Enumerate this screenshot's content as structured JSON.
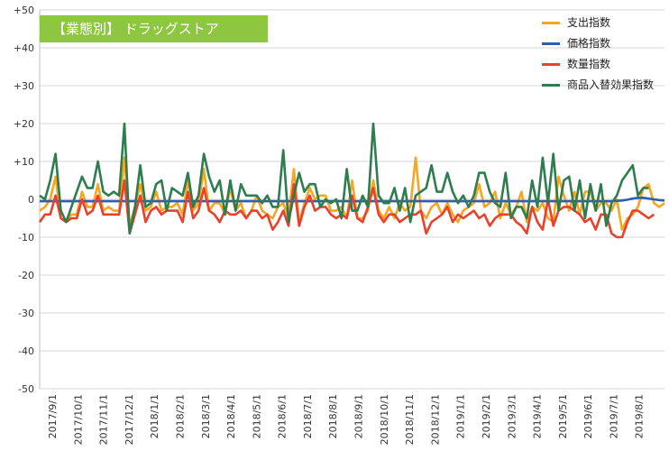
{
  "chart_data": {
    "type": "line",
    "title": "【業態別】 ドラッグストア",
    "ylim": [
      -50,
      50
    ],
    "y_ticks": [
      50,
      40,
      30,
      20,
      10,
      0,
      -10,
      -20,
      -30,
      -40,
      -50
    ],
    "y_tick_labels": [
      "+50",
      "+40",
      "+30",
      "+20",
      "+10",
      "0",
      "-10",
      "-20",
      "-30",
      "-40",
      "-50"
    ],
    "x_labels": [
      "2017/9/1",
      "2017/10/1",
      "2017/11/1",
      "2017/12/1",
      "2018/1/1",
      "2018/2/1",
      "2018/3/1",
      "2018/4/1",
      "2018/5/1",
      "2018/6/1",
      "2018/7/1",
      "2018/8/1",
      "2018/9/1",
      "2018/10/1",
      "2018/11/1",
      "2018/12/1",
      "2019/1/1",
      "2019/2/1",
      "2019/3/1",
      "2019/4/1",
      "2019/5/1",
      "2019/6/1",
      "2019/7/1",
      "2019/8/1"
    ],
    "grid": true,
    "legend_position": "top-right",
    "series": [
      {
        "name": "支出指数",
        "color": "#F5A623",
        "values": [
          -3,
          -2,
          0,
          6,
          -5,
          -6,
          -4,
          -4,
          2,
          -2,
          -2,
          4,
          -3,
          -2,
          -3,
          -3,
          11,
          -7,
          -2,
          4,
          -3,
          -2,
          2,
          -3,
          -2,
          -2,
          -1,
          -4,
          5,
          -3,
          -1,
          8,
          -3,
          -1,
          -1,
          -4,
          3,
          -3,
          -1,
          -5,
          -3,
          1,
          -3,
          -4,
          -5,
          -2,
          -1,
          -5,
          8,
          -6,
          -1,
          3,
          0,
          1,
          1,
          -3,
          -3,
          -2,
          -5,
          5,
          -5,
          -5,
          -3,
          5,
          -3,
          -5,
          -2,
          -5,
          -1,
          -3,
          -2,
          11,
          -3,
          -5,
          -2,
          -1,
          -4,
          -1,
          -4,
          -6,
          -3,
          -2,
          -1,
          4,
          -2,
          -1,
          2,
          -5,
          -1,
          -4,
          -2,
          2,
          -6,
          -2,
          -3,
          -1,
          -5,
          -6,
          6,
          1,
          -3,
          2,
          -4,
          2,
          2,
          -3,
          -1,
          -1,
          -3,
          0,
          -8,
          -5,
          -4,
          -2,
          3,
          4,
          -1,
          -2,
          -1
        ]
      },
      {
        "name": "価格指数",
        "color": "#2E5FA8",
        "values": [
          -0.5,
          -0.5,
          -0.5,
          -0.5,
          -0.5,
          -0.5,
          -0.5,
          -0.5,
          -0.5,
          -0.5,
          -0.5,
          -0.5,
          -0.5,
          -0.5,
          -0.5,
          -0.5,
          -0.5,
          -0.5,
          -0.5,
          -0.5,
          -0.5,
          -0.5,
          -0.5,
          -0.5,
          -0.5,
          -0.5,
          -0.5,
          -0.5,
          -0.5,
          -0.5,
          -0.5,
          -0.5,
          -0.5,
          -0.5,
          -0.5,
          -0.5,
          -0.5,
          -0.5,
          -0.5,
          -0.5,
          -0.5,
          -0.5,
          -0.5,
          -0.5,
          -0.5,
          -0.5,
          -0.5,
          -0.5,
          -0.5,
          -0.5,
          -0.5,
          -0.5,
          -0.5,
          -0.5,
          -0.5,
          -0.5,
          -0.5,
          -0.5,
          -0.5,
          -0.5,
          -0.5,
          -0.5,
          -0.5,
          -0.5,
          -0.5,
          -0.5,
          -0.5,
          -0.5,
          -0.5,
          -0.5,
          -0.5,
          -0.5,
          -0.5,
          -0.5,
          -0.5,
          -0.5,
          -0.5,
          -0.5,
          -0.5,
          -0.5,
          -0.5,
          -0.5,
          -0.5,
          -0.5,
          -0.5,
          -0.5,
          -0.5,
          -0.5,
          -0.5,
          -0.5,
          -0.5,
          -0.5,
          -0.5,
          -0.5,
          -0.5,
          -0.5,
          -0.5,
          -0.5,
          -0.5,
          -0.5,
          -0.5,
          -0.5,
          -0.5,
          -0.5,
          -0.5,
          -0.5,
          -0.5,
          -0.5,
          -0.5,
          -0.4,
          -0.3,
          -0.1,
          0.2,
          0.4,
          0.4,
          0.2,
          0,
          -0.2,
          -0.3
        ]
      },
      {
        "name": "数量指数",
        "color": "#E8412C",
        "values": [
          -6,
          -4,
          -4,
          1,
          -5,
          -6,
          -5,
          -5,
          0,
          -4,
          -3,
          1,
          -4,
          -4,
          -4,
          -4,
          5,
          -9,
          -4,
          1,
          -6,
          -3,
          -2,
          -4,
          -3,
          -3,
          -3,
          -6,
          2,
          -5,
          -3,
          3,
          -3,
          -4,
          -6,
          -3,
          -4,
          -4,
          -3,
          -5,
          -3,
          -3,
          -5,
          -4,
          -8,
          -6,
          -3,
          -7,
          4,
          -7,
          -2,
          1,
          -3,
          -2,
          -2,
          -4,
          -5,
          -4,
          -5,
          1,
          -5,
          -6,
          -2,
          3,
          -4,
          -6,
          -4,
          -4,
          -6,
          -5,
          -4,
          -4,
          -3,
          -9,
          -6,
          -5,
          -4,
          -2,
          -6,
          -4,
          -5,
          -4,
          -3,
          -5,
          -4,
          -7,
          -5,
          -4,
          -4,
          -4,
          -6,
          -7,
          -9,
          -2,
          -6,
          -8,
          0,
          -7,
          -3,
          -2,
          -2,
          -3,
          -4,
          -6,
          -5,
          -8,
          -4,
          -4,
          -9,
          -10,
          -10,
          -6,
          -3,
          -3,
          -4,
          -5,
          -4
        ]
      },
      {
        "name": "商品入替効果指数",
        "color": "#2E7D4F",
        "values": [
          1,
          0,
          5,
          12,
          -3,
          -6,
          -2,
          2,
          6,
          3,
          3,
          10,
          2,
          1,
          2,
          1,
          20,
          -9,
          -2,
          9,
          -2,
          -1,
          4,
          5,
          -3,
          3,
          2,
          1,
          7,
          -2,
          1,
          12,
          6,
          2,
          5,
          -4,
          5,
          -3,
          4,
          1,
          1,
          1,
          -1,
          1,
          -2,
          -2,
          13,
          -6,
          1,
          7,
          2,
          4,
          4,
          -2,
          0,
          -1,
          0,
          -5,
          8,
          -3,
          -3,
          1,
          -2,
          20,
          1,
          -1,
          -1,
          3,
          -3,
          3,
          -6,
          1,
          2,
          3,
          9,
          2,
          2,
          7,
          2,
          -1,
          1,
          -2,
          1,
          7,
          7,
          2,
          -1,
          -2,
          7,
          -5,
          -2,
          -2,
          -5,
          5,
          -2,
          11,
          -1,
          12,
          -3,
          5,
          6,
          -3,
          5,
          -5,
          4,
          -3,
          4,
          -7,
          -1,
          1,
          5,
          7,
          9,
          1,
          3,
          3
        ]
      }
    ]
  }
}
